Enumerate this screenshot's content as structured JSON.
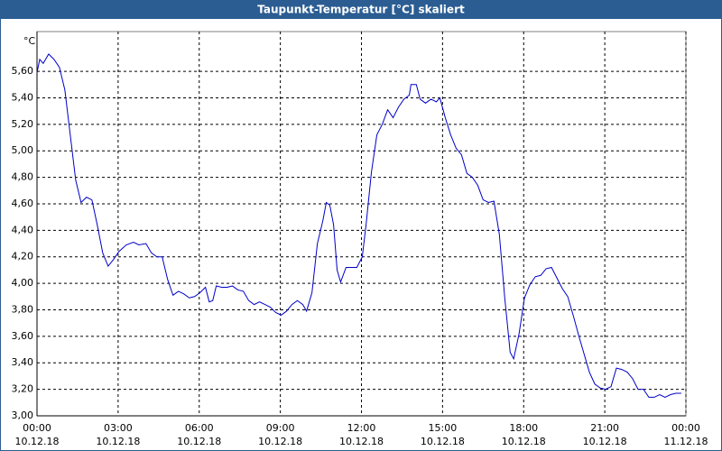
{
  "window_title": "Taupunkt-Temperatur [°C] skaliert",
  "chart_data": {
    "type": "line",
    "y_unit": "°C",
    "x": [
      0,
      0.1,
      0.23,
      0.43,
      0.63,
      0.83,
      1.03,
      1.23,
      1.43,
      1.63,
      1.83,
      2.03,
      2.23,
      2.43,
      2.63,
      2.83,
      3.03,
      3.3,
      3.57,
      3.77,
      4.03,
      4.23,
      4.43,
      4.63,
      4.83,
      5.03,
      5.23,
      5.43,
      5.63,
      5.83,
      6.03,
      6.23,
      6.37,
      6.5,
      6.63,
      6.83,
      7.03,
      7.23,
      7.43,
      7.63,
      7.83,
      8.03,
      8.23,
      8.43,
      8.63,
      8.83,
      9.03,
      9.23,
      9.43,
      9.63,
      9.83,
      9.97,
      10.17,
      10.37,
      10.57,
      10.7,
      10.83,
      10.97,
      11.1,
      11.23,
      11.43,
      11.63,
      11.83,
      12.03,
      12.17,
      12.37,
      12.57,
      12.77,
      12.97,
      13.17,
      13.37,
      13.57,
      13.77,
      13.83,
      14.03,
      14.17,
      14.37,
      14.57,
      14.77,
      14.9,
      15.1,
      15.3,
      15.5,
      15.7,
      15.9,
      16.1,
      16.3,
      16.5,
      16.7,
      16.9,
      17.1,
      17.3,
      17.5,
      17.63,
      17.83,
      18.03,
      18.23,
      18.43,
      18.63,
      18.83,
      19.03,
      19.23,
      19.43,
      19.63,
      19.83,
      20.03,
      20.23,
      20.43,
      20.63,
      20.83,
      21.03,
      21.23,
      21.43,
      21.63,
      21.83,
      22.03,
      22.23,
      22.43,
      22.63,
      22.83,
      23.03,
      23.23,
      23.43,
      23.63,
      23.83
    ],
    "series": [
      {
        "color": "#0000c8",
        "values": [
          5.59,
          5.69,
          5.66,
          5.73,
          5.69,
          5.63,
          5.46,
          5.12,
          4.78,
          4.61,
          4.65,
          4.63,
          4.44,
          4.23,
          4.13,
          4.18,
          4.24,
          4.29,
          4.31,
          4.29,
          4.3,
          4.23,
          4.2,
          4.2,
          4.03,
          3.91,
          3.94,
          3.92,
          3.89,
          3.9,
          3.93,
          3.97,
          3.86,
          3.87,
          3.98,
          3.97,
          3.97,
          3.98,
          3.95,
          3.94,
          3.87,
          3.84,
          3.86,
          3.84,
          3.82,
          3.78,
          3.76,
          3.79,
          3.84,
          3.87,
          3.84,
          3.79,
          3.93,
          4.3,
          4.47,
          4.61,
          4.59,
          4.44,
          4.1,
          4.01,
          4.12,
          4.12,
          4.12,
          4.2,
          4.44,
          4.84,
          5.12,
          5.2,
          5.31,
          5.25,
          5.33,
          5.39,
          5.42,
          5.5,
          5.5,
          5.39,
          5.36,
          5.39,
          5.37,
          5.4,
          5.25,
          5.12,
          5.02,
          4.97,
          4.83,
          4.8,
          4.74,
          4.63,
          4.61,
          4.62,
          4.37,
          3.89,
          3.48,
          3.43,
          3.62,
          3.89,
          3.99,
          4.05,
          4.06,
          4.11,
          4.12,
          4.04,
          3.96,
          3.9,
          3.76,
          3.61,
          3.47,
          3.33,
          3.24,
          3.21,
          3.2,
          3.22,
          3.36,
          3.35,
          3.33,
          3.28,
          3.2,
          3.2,
          3.14,
          3.14,
          3.16,
          3.14,
          3.16,
          3.17,
          3.17
        ]
      }
    ],
    "xlim": [
      0,
      24
    ],
    "xticks": [
      {
        "value": 0,
        "label": "00:00"
      },
      {
        "value": 3,
        "label": "03:00"
      },
      {
        "value": 6,
        "label": "06:00"
      },
      {
        "value": 9,
        "label": "09:00"
      },
      {
        "value": 12,
        "label": "12:00"
      },
      {
        "value": 15,
        "label": "15:00"
      },
      {
        "value": 18,
        "label": "18:00"
      },
      {
        "value": 21,
        "label": "21:00"
      },
      {
        "value": 24,
        "label": "00:00"
      }
    ],
    "xtick_dates": [
      "10.12.18",
      "10.12.18",
      "10.12.18",
      "10.12.18",
      "10.12.18",
      "10.12.18",
      "10.12.18",
      "10.12.18",
      "11.12.18"
    ],
    "ylim": [
      3,
      5.9
    ],
    "yticks": [
      {
        "value": 3,
        "label": "3,00"
      },
      {
        "value": 3.2,
        "label": "3,20"
      },
      {
        "value": 3.4,
        "label": "3,40"
      },
      {
        "value": 3.6,
        "label": "3,60"
      },
      {
        "value": 3.8,
        "label": "3,80"
      },
      {
        "value": 4,
        "label": "4,00"
      },
      {
        "value": 4.2,
        "label": "4,20"
      },
      {
        "value": 4.4,
        "label": "4,40"
      },
      {
        "value": 4.6,
        "label": "4,60"
      },
      {
        "value": 4.8,
        "label": "4,80"
      },
      {
        "value": 5,
        "label": "5,00"
      },
      {
        "value": 5.2,
        "label": "5,20"
      },
      {
        "value": 5.4,
        "label": "5,40"
      },
      {
        "value": 5.6,
        "label": "5,60"
      }
    ],
    "grid": true
  }
}
